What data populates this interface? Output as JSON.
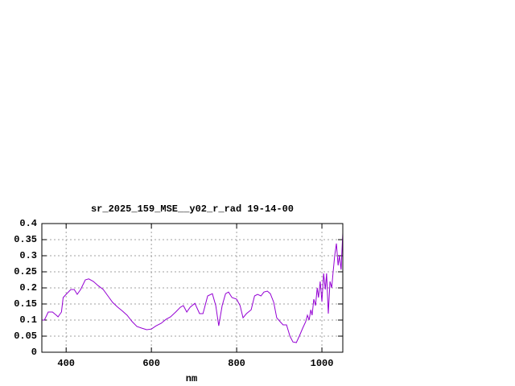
{
  "chart_data": {
    "type": "line",
    "title": "sr_2025_159_MSE__y02_r_rad 19-14-00",
    "xlabel": "nm",
    "x": [
      343,
      349,
      358,
      368,
      377,
      381,
      389,
      393,
      400,
      411,
      419,
      426,
      434,
      445,
      453,
      464,
      475,
      487,
      498,
      509,
      521,
      532,
      543,
      555,
      566,
      577,
      589,
      600,
      611,
      623,
      634,
      645,
      657,
      668,
      675,
      683,
      691,
      702,
      713,
      721,
      732,
      743,
      751,
      758,
      766,
      774,
      781,
      789,
      800,
      808,
      815,
      823,
      834,
      842,
      849,
      857,
      864,
      872,
      879,
      887,
      894,
      902,
      909,
      917,
      925,
      932,
      940,
      947,
      955,
      962,
      966,
      970,
      974,
      977,
      981,
      985,
      989,
      992,
      996,
      1000,
      1004,
      1008,
      1011,
      1015,
      1019,
      1023,
      1026,
      1030,
      1034,
      1038,
      1041,
      1045,
      1049
    ],
    "series": [
      {
        "name": "sr_2025_159_MSE__y02_r_rad",
        "color": "#9400d3",
        "values": [
          0.1,
          0.1,
          0.125,
          0.125,
          0.115,
          0.11,
          0.125,
          0.17,
          0.18,
          0.195,
          0.195,
          0.18,
          0.195,
          0.225,
          0.228,
          0.22,
          0.207,
          0.195,
          0.175,
          0.155,
          0.14,
          0.128,
          0.115,
          0.095,
          0.08,
          0.075,
          0.07,
          0.072,
          0.082,
          0.09,
          0.102,
          0.11,
          0.125,
          0.14,
          0.145,
          0.125,
          0.14,
          0.152,
          0.12,
          0.12,
          0.175,
          0.182,
          0.145,
          0.082,
          0.145,
          0.182,
          0.187,
          0.17,
          0.165,
          0.145,
          0.107,
          0.12,
          0.132,
          0.175,
          0.18,
          0.175,
          0.187,
          0.19,
          0.182,
          0.155,
          0.107,
          0.095,
          0.085,
          0.085,
          0.05,
          0.032,
          0.03,
          0.05,
          0.075,
          0.095,
          0.115,
          0.1,
          0.132,
          0.115,
          0.165,
          0.145,
          0.2,
          0.17,
          0.22,
          0.157,
          0.245,
          0.195,
          0.245,
          0.12,
          0.22,
          0.2,
          0.245,
          0.3,
          0.338,
          0.27,
          0.3,
          0.257,
          0.37
        ]
      }
    ],
    "xlim": [
      343,
      1049
    ],
    "ylim": [
      0,
      0.4
    ],
    "xticks": [
      400,
      600,
      800,
      1000
    ],
    "yticks": [
      0,
      0.05,
      0.1,
      0.15,
      0.2,
      0.25,
      0.3,
      0.35,
      0.4
    ],
    "grid": true
  }
}
